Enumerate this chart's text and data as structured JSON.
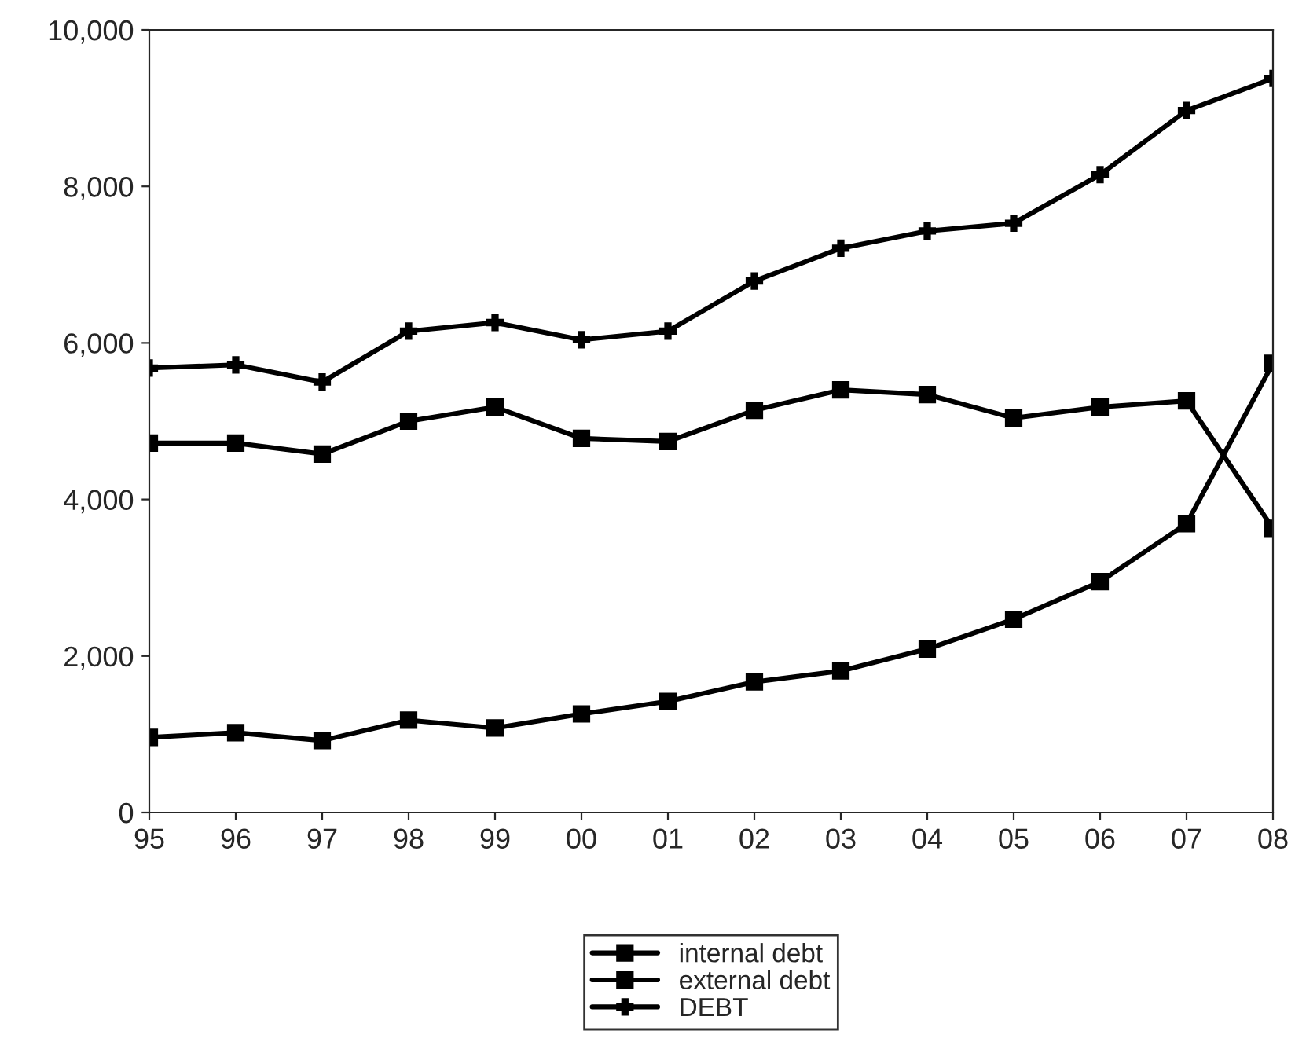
{
  "chart_data": {
    "type": "line",
    "categories": [
      "95",
      "96",
      "97",
      "98",
      "99",
      "00",
      "01",
      "02",
      "03",
      "04",
      "05",
      "06",
      "07",
      "08"
    ],
    "series": [
      {
        "name": "internal debt",
        "color": "#000000",
        "marker": "square",
        "values": [
          960,
          1020,
          920,
          1180,
          1080,
          1260,
          1420,
          1670,
          1810,
          2090,
          2470,
          2950,
          3690,
          5740
        ]
      },
      {
        "name": "external debt",
        "color": "#000000",
        "marker": "square",
        "values": [
          4720,
          4720,
          4580,
          5000,
          5180,
          4780,
          4740,
          5140,
          5400,
          5340,
          5040,
          5180,
          5260,
          3630
        ]
      },
      {
        "name": "DEBT",
        "color": "#000000",
        "marker": "cross",
        "values": [
          5680,
          5720,
          5500,
          6150,
          6260,
          6040,
          6150,
          6790,
          7210,
          7430,
          7530,
          8150,
          8970,
          9380
        ]
      }
    ],
    "ylim": [
      0,
      10000
    ],
    "yticks": [
      {
        "value": 0,
        "label": "0"
      },
      {
        "value": 2000,
        "label": "2,000"
      },
      {
        "value": 4000,
        "label": "4,000"
      },
      {
        "value": 6000,
        "label": "6,000"
      },
      {
        "value": 8000,
        "label": "8,000"
      },
      {
        "value": 10000,
        "label": "10,000"
      }
    ],
    "grid": false,
    "legend": "bottom",
    "line_style": "solid"
  }
}
